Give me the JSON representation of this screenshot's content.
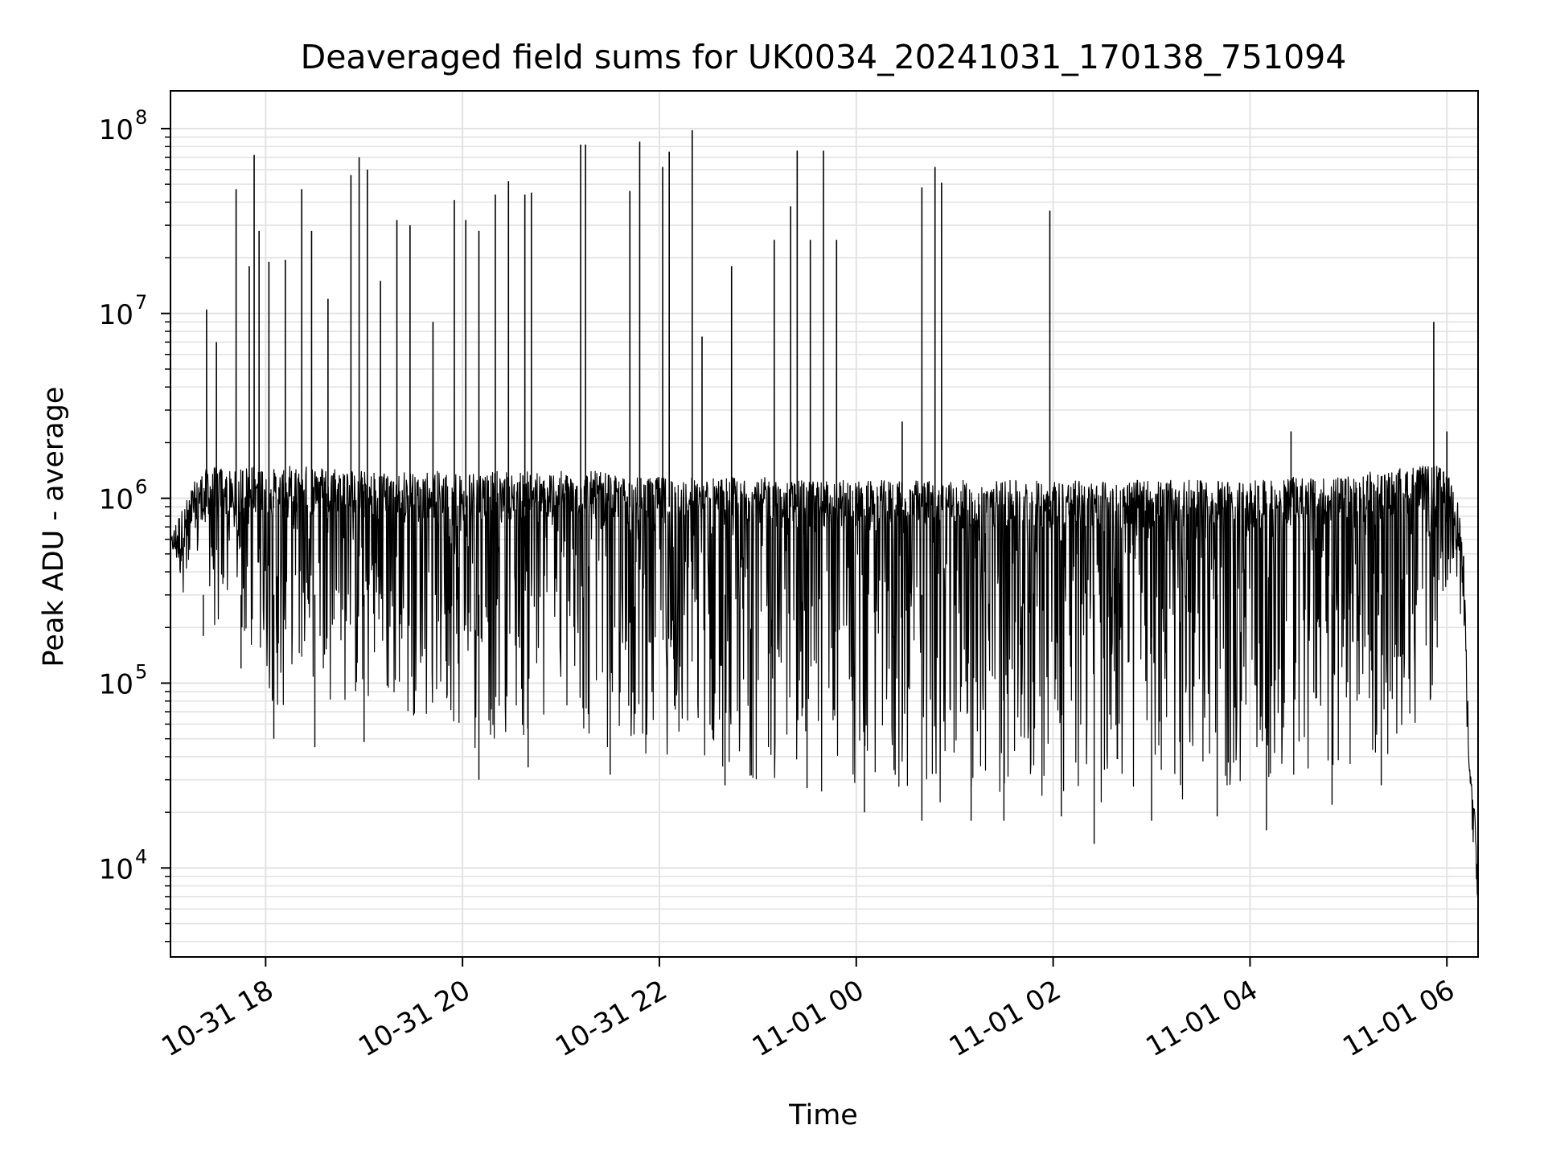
{
  "chart_data": {
    "type": "line",
    "title": "Deaveraged field sums for UK0034_20241031_170138_751094",
    "xlabel": "Time",
    "ylabel": "Peak ADU - average",
    "yscale": "log",
    "ylim": [
      3300,
      160000000
    ],
    "xlim": [
      "2024-10-31 17:02",
      "2024-11-01 06:19"
    ],
    "grid": true,
    "line_color": "#000000",
    "grid_color": "#e3e3e3",
    "x_ticks": [
      {
        "value": "2024-10-31 18:00",
        "label": "10-31 18"
      },
      {
        "value": "2024-10-31 20:00",
        "label": "10-31 20"
      },
      {
        "value": "2024-10-31 22:00",
        "label": "10-31 22"
      },
      {
        "value": "2024-11-01 00:00",
        "label": "11-01 00"
      },
      {
        "value": "2024-11-01 02:00",
        "label": "11-01 02"
      },
      {
        "value": "2024-11-01 04:00",
        "label": "11-01 04"
      },
      {
        "value": "2024-11-01 06:00",
        "label": "11-01 06"
      }
    ],
    "y_ticks": [
      {
        "value": 10000,
        "base": "10",
        "exp": "4"
      },
      {
        "value": 100000,
        "base": "10",
        "exp": "5"
      },
      {
        "value": 1000000,
        "base": "10",
        "exp": "6"
      },
      {
        "value": 10000000,
        "base": "10",
        "exp": "7"
      },
      {
        "value": 100000000,
        "base": "10",
        "exp": "8"
      }
    ],
    "series": [
      {
        "x": [
          "2024-10-31 17:02",
          "2024-10-31 17:06",
          "2024-10-31 17:10",
          "2024-10-31 17:14",
          "2024-10-31 17:18",
          "2024-10-31 17:22",
          "2024-10-31 17:26",
          "2024-10-31 17:30",
          "2024-10-31 17:34",
          "2024-10-31 17:38",
          "2024-10-31 17:42",
          "2024-10-31 17:46",
          "2024-10-31 17:50",
          "2024-10-31 17:55",
          "2024-10-31 18:00",
          "2024-10-31 18:10",
          "2024-10-31 18:15",
          "2024-10-31 18:20",
          "2024-10-31 18:30",
          "2024-10-31 18:35",
          "2024-10-31 18:40",
          "2024-10-31 18:50",
          "2024-10-31 19:00",
          "2024-10-31 19:10",
          "2024-10-31 19:20",
          "2024-10-31 19:30",
          "2024-10-31 19:40",
          "2024-10-31 19:50",
          "2024-10-31 20:00",
          "2024-10-31 20:10",
          "2024-10-31 20:15",
          "2024-10-31 20:25",
          "2024-10-31 20:35",
          "2024-10-31 20:45",
          "2024-10-31 20:55",
          "2024-10-31 21:05",
          "2024-10-31 21:15",
          "2024-10-31 21:25",
          "2024-10-31 21:35",
          "2024-10-31 21:45",
          "2024-10-31 21:55",
          "2024-10-31 22:05",
          "2024-10-31 22:15",
          "2024-10-31 22:25",
          "2024-10-31 22:35",
          "2024-10-31 22:45",
          "2024-10-31 22:55",
          "2024-10-31 23:05",
          "2024-10-31 23:15",
          "2024-10-31 23:25",
          "2024-10-31 23:35",
          "2024-10-31 23:45",
          "2024-10-31 23:55",
          "2024-11-01 00:05",
          "2024-11-01 00:15",
          "2024-11-01 00:25",
          "2024-11-01 00:35",
          "2024-11-01 00:45",
          "2024-11-01 00:55",
          "2024-11-01 01:05",
          "2024-11-01 01:15",
          "2024-11-01 01:25",
          "2024-11-01 01:35",
          "2024-11-01 01:45",
          "2024-11-01 01:55",
          "2024-11-01 02:05",
          "2024-11-01 02:15",
          "2024-11-01 02:25",
          "2024-11-01 02:35",
          "2024-11-01 02:45",
          "2024-11-01 02:55",
          "2024-11-01 03:05",
          "2024-11-01 03:15",
          "2024-11-01 03:25",
          "2024-11-01 03:35",
          "2024-11-01 03:45",
          "2024-11-01 03:55",
          "2024-11-01 04:05",
          "2024-11-01 04:15",
          "2024-11-01 04:25",
          "2024-11-01 04:35",
          "2024-11-01 04:45",
          "2024-11-01 04:55",
          "2024-11-01 05:05",
          "2024-11-01 05:15",
          "2024-11-01 05:25",
          "2024-11-01 05:35",
          "2024-11-01 05:45",
          "2024-11-01 05:55",
          "2024-11-01 06:05",
          "2024-11-01 06:10",
          "2024-11-01 06:14",
          "2024-11-01 06:17",
          "2024-11-01 06:19"
        ],
        "y_low": [
          550000,
          400000,
          300000,
          200000,
          400000,
          600000,
          300000,
          150000,
          200000,
          250000,
          300000,
          150000,
          120000,
          100000,
          80000,
          60000,
          120000,
          110000,
          100000,
          90000,
          80000,
          70000,
          65000,
          60000,
          70000,
          65000,
          60000,
          60000,
          50000,
          40000,
          50000,
          40000,
          45000,
          50000,
          50000,
          45000,
          45000,
          42000,
          42000,
          40000,
          40000,
          40000,
          38000,
          36000,
          35000,
          32000,
          30000,
          28000,
          27000,
          26000,
          25000,
          24000,
          23000,
          22000,
          22000,
          22000,
          22000,
          23000,
          22000,
          23000,
          22000,
          23000,
          22000,
          22000,
          23000,
          22000,
          21000,
          21000,
          22000,
          22000,
          23000,
          22000,
          22000,
          23000,
          22000,
          23000,
          22000,
          22000,
          22000,
          22000,
          22000,
          23000,
          24000,
          25000,
          28000,
          40000,
          50000,
          60000,
          80000,
          500000,
          120000,
          30000,
          18000,
          5000
        ],
        "y_high": [
          600000,
          800000,
          900000,
          1100000,
          1300000,
          1400000,
          1500000,
          1500000,
          1500000,
          1400000,
          1400000,
          1500000,
          1500000,
          1500000,
          1500000,
          1400000,
          1500000,
          1500000,
          1500000,
          1500000,
          1500000,
          1500000,
          1400000,
          1400000,
          1400000,
          1400000,
          1400000,
          1400000,
          1400000,
          1400000,
          1400000,
          1400000,
          1400000,
          1400000,
          1400000,
          1400000,
          1400000,
          1400000,
          1300000,
          1300000,
          1300000,
          1300000,
          1300000,
          1300000,
          1300000,
          1300000,
          1300000,
          1300000,
          1250000,
          1250000,
          1250000,
          1250000,
          1250000,
          1250000,
          1250000,
          1250000,
          1250000,
          1250000,
          1250000,
          1250000,
          1250000,
          1250000,
          1250000,
          1250000,
          1250000,
          1250000,
          1250000,
          1250000,
          1250000,
          1250000,
          1250000,
          1250000,
          1250000,
          1250000,
          1250000,
          1250000,
          1250000,
          1250000,
          1250000,
          1300000,
          1300000,
          1300000,
          1300000,
          1350000,
          1400000,
          1400000,
          1500000,
          1500000,
          1500000,
          1200000,
          600000,
          35000,
          20000,
          8000
        ]
      }
    ],
    "spikes": [
      {
        "x": "2024-10-31 17:24",
        "y": 10500000
      },
      {
        "x": "2024-10-31 17:30",
        "y": 7000000
      },
      {
        "x": "2024-10-31 17:42",
        "y": 47000000
      },
      {
        "x": "2024-10-31 17:50",
        "y": 18000000
      },
      {
        "x": "2024-10-31 17:53",
        "y": 72000000
      },
      {
        "x": "2024-10-31 17:56",
        "y": 28000000
      },
      {
        "x": "2024-10-31 18:02",
        "y": 19000000
      },
      {
        "x": "2024-10-31 18:12",
        "y": 19500000
      },
      {
        "x": "2024-10-31 18:22",
        "y": 47000000
      },
      {
        "x": "2024-10-31 18:28",
        "y": 28000000
      },
      {
        "x": "2024-10-31 18:38",
        "y": 12000000
      },
      {
        "x": "2024-10-31 18:52",
        "y": 56000000
      },
      {
        "x": "2024-10-31 18:57",
        "y": 70000000
      },
      {
        "x": "2024-10-31 19:02",
        "y": 60000000
      },
      {
        "x": "2024-10-31 19:10",
        "y": 15000000
      },
      {
        "x": "2024-10-31 19:20",
        "y": 32000000
      },
      {
        "x": "2024-10-31 19:28",
        "y": 30000000
      },
      {
        "x": "2024-10-31 19:42",
        "y": 9000000
      },
      {
        "x": "2024-10-31 19:55",
        "y": 41000000
      },
      {
        "x": "2024-10-31 20:02",
        "y": 32000000
      },
      {
        "x": "2024-10-31 20:10",
        "y": 28000000
      },
      {
        "x": "2024-10-31 20:20",
        "y": 44000000
      },
      {
        "x": "2024-10-31 20:28",
        "y": 52000000
      },
      {
        "x": "2024-10-31 20:38",
        "y": 44000000
      },
      {
        "x": "2024-10-31 20:42",
        "y": 45000000
      },
      {
        "x": "2024-10-31 21:12",
        "y": 82000000
      },
      {
        "x": "2024-10-31 21:15",
        "y": 82000000
      },
      {
        "x": "2024-10-31 21:42",
        "y": 46000000
      },
      {
        "x": "2024-10-31 21:48",
        "y": 85000000
      },
      {
        "x": "2024-10-31 22:02",
        "y": 62000000
      },
      {
        "x": "2024-10-31 22:06",
        "y": 75000000
      },
      {
        "x": "2024-10-31 22:20",
        "y": 98000000
      },
      {
        "x": "2024-10-31 22:26",
        "y": 7500000
      },
      {
        "x": "2024-10-31 22:44",
        "y": 18000000
      },
      {
        "x": "2024-10-31 23:10",
        "y": 25000000
      },
      {
        "x": "2024-10-31 23:20",
        "y": 38000000
      },
      {
        "x": "2024-10-31 23:24",
        "y": 76000000
      },
      {
        "x": "2024-10-31 23:32",
        "y": 25000000
      },
      {
        "x": "2024-10-31 23:40",
        "y": 76000000
      },
      {
        "x": "2024-10-31 23:48",
        "y": 25000000
      },
      {
        "x": "2024-11-01 00:28",
        "y": 2600000
      },
      {
        "x": "2024-11-01 00:40",
        "y": 48000000
      },
      {
        "x": "2024-11-01 00:48",
        "y": 62000000
      },
      {
        "x": "2024-11-01 00:52",
        "y": 51000000
      },
      {
        "x": "2024-11-01 01:58",
        "y": 36000000
      },
      {
        "x": "2024-11-01 04:25",
        "y": 2300000
      },
      {
        "x": "2024-11-01 05:52",
        "y": 9000000
      },
      {
        "x": "2024-11-01 06:00",
        "y": 2300000
      }
    ],
    "dips": [
      {
        "x": "2024-10-31 17:22",
        "y": 180000
      },
      {
        "x": "2024-10-31 17:45",
        "y": 120000
      },
      {
        "x": "2024-10-31 18:05",
        "y": 50000
      },
      {
        "x": "2024-10-31 18:30",
        "y": 45000
      },
      {
        "x": "2024-10-31 19:00",
        "y": 48000
      },
      {
        "x": "2024-10-31 20:10",
        "y": 30000
      },
      {
        "x": "2024-10-31 20:40",
        "y": 35000
      },
      {
        "x": "2024-10-31 21:30",
        "y": 32000
      },
      {
        "x": "2024-10-31 22:40",
        "y": 28000
      },
      {
        "x": "2024-10-31 23:30",
        "y": 27000
      },
      {
        "x": "2024-11-01 00:05",
        "y": 20000
      },
      {
        "x": "2024-11-01 00:40",
        "y": 18000
      },
      {
        "x": "2024-11-01 01:10",
        "y": 18000
      },
      {
        "x": "2024-11-01 01:30",
        "y": 18000
      },
      {
        "x": "2024-11-01 02:05",
        "y": 19000
      },
      {
        "x": "2024-11-01 02:25",
        "y": 13500
      },
      {
        "x": "2024-11-01 03:00",
        "y": 18000
      },
      {
        "x": "2024-11-01 03:40",
        "y": 19000
      },
      {
        "x": "2024-11-01 04:10",
        "y": 16000
      },
      {
        "x": "2024-11-01 04:50",
        "y": 22000
      },
      {
        "x": "2024-11-01 05:20",
        "y": 28000
      }
    ]
  }
}
